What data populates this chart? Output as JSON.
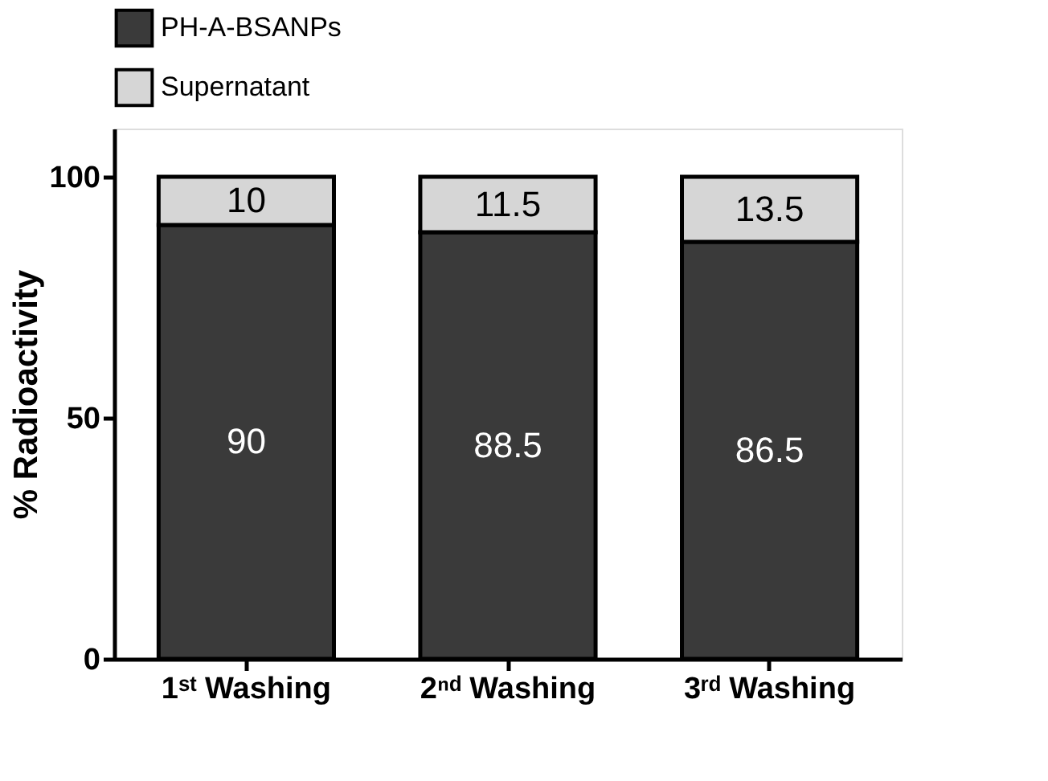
{
  "chart_data": {
    "type": "bar",
    "stacked": true,
    "ylabel": "% Radioactivity",
    "categories": [
      "1ˢᵗ Washing",
      "2ⁿᵈ Washing",
      "3ʳᵈ Washing"
    ],
    "series": [
      {
        "name": "PH-A-BSANPs",
        "color": "#3a3a3a",
        "values": [
          90,
          88.5,
          86.5
        ]
      },
      {
        "name": "Supernatant",
        "color": "#d6d6d6",
        "values": [
          10,
          11.5,
          13.5
        ]
      }
    ],
    "ylim": [
      0,
      110
    ],
    "yticks": [
      0,
      50,
      100
    ],
    "data_labels": true,
    "legend": "top left",
    "grid": false
  }
}
